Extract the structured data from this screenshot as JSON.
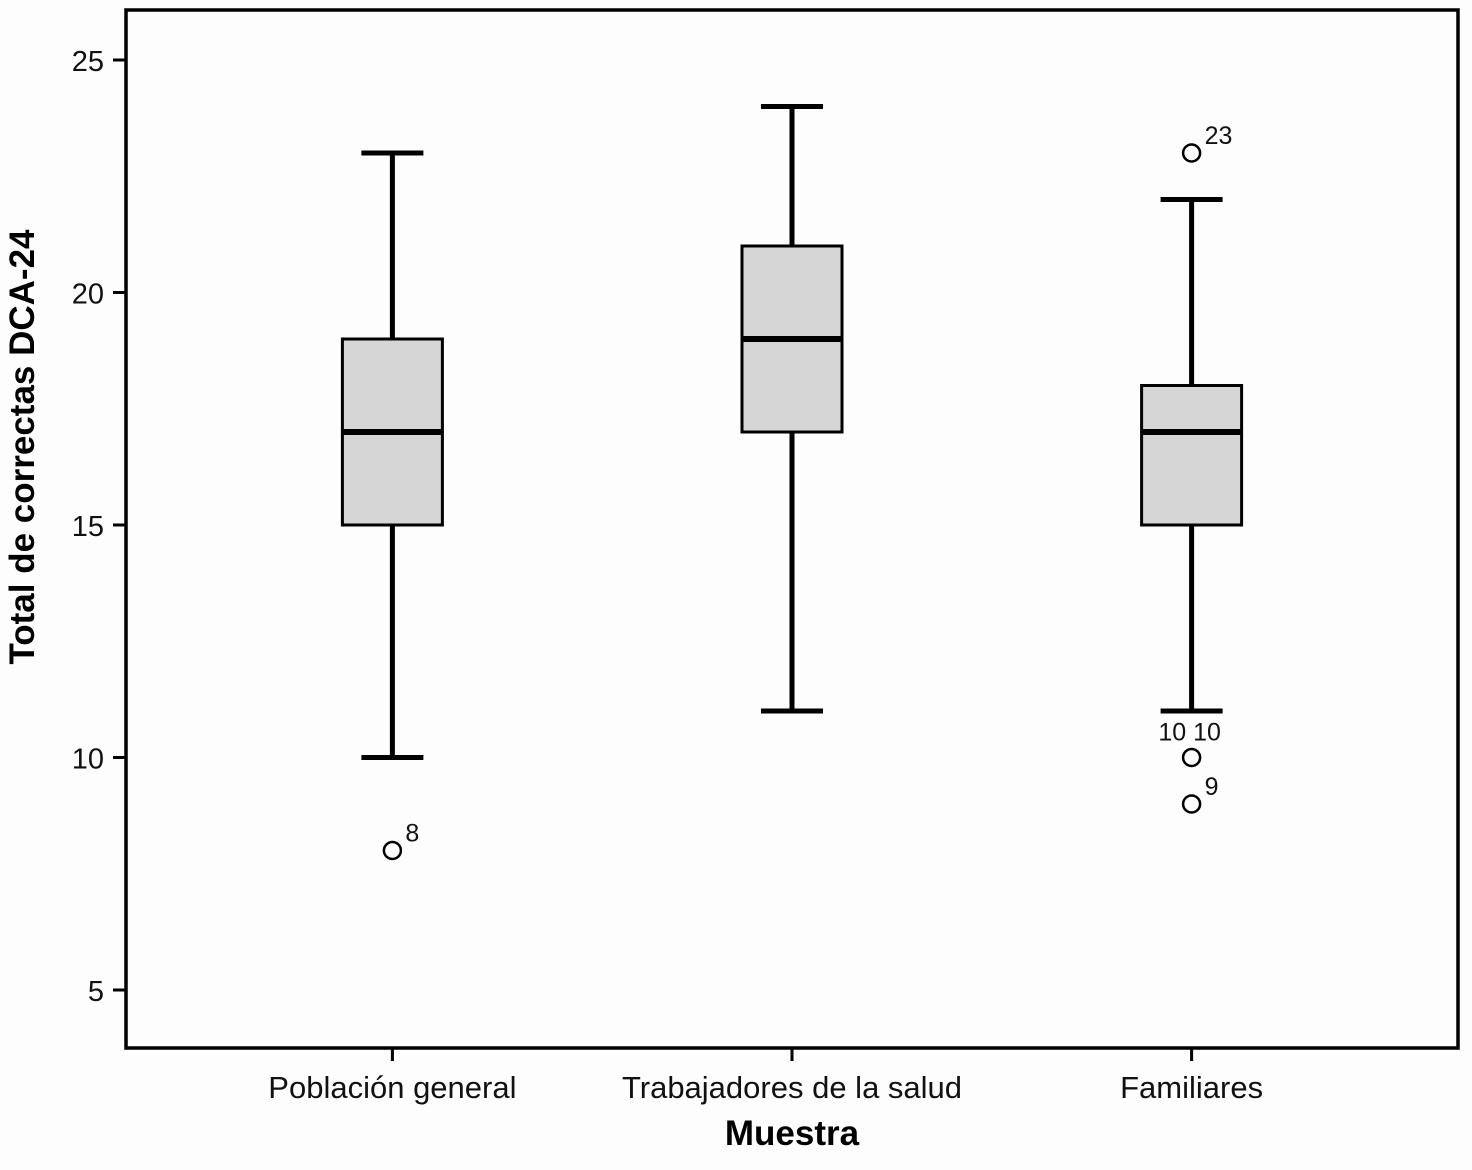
{
  "chart_data": {
    "type": "boxplot",
    "title": "",
    "xlabel": "Muestra",
    "ylabel": "Total de correctas DCA-24",
    "ylim": [
      4,
      26
    ],
    "yticks": [
      5,
      10,
      15,
      20,
      25
    ],
    "grid": false,
    "legend": "none",
    "box_fill": "#d6d6d6",
    "stroke_color": "#000000",
    "categories": [
      "Población general",
      "Trabajadores de la salud",
      "Familiares"
    ],
    "series": [
      {
        "category": "Población general",
        "whisker_low": 10,
        "q1": 15,
        "median": 17,
        "q3": 19,
        "whisker_high": 23,
        "outliers": [
          {
            "value": 8,
            "label": "8",
            "label_pos": "right"
          }
        ]
      },
      {
        "category": "Trabajadores de la salud",
        "whisker_low": 11,
        "q1": 17,
        "median": 19,
        "q3": 21,
        "whisker_high": 24,
        "outliers": []
      },
      {
        "category": "Familiares",
        "whisker_low": 11,
        "q1": 15,
        "median": 17,
        "q3": 18,
        "whisker_high": 22,
        "outliers": [
          {
            "value": 23,
            "label": "23",
            "label_pos": "right"
          },
          {
            "value": 10,
            "label": "10  10",
            "label_pos": "above"
          },
          {
            "value": 9,
            "label": "9",
            "label_pos": "right"
          }
        ]
      }
    ]
  }
}
